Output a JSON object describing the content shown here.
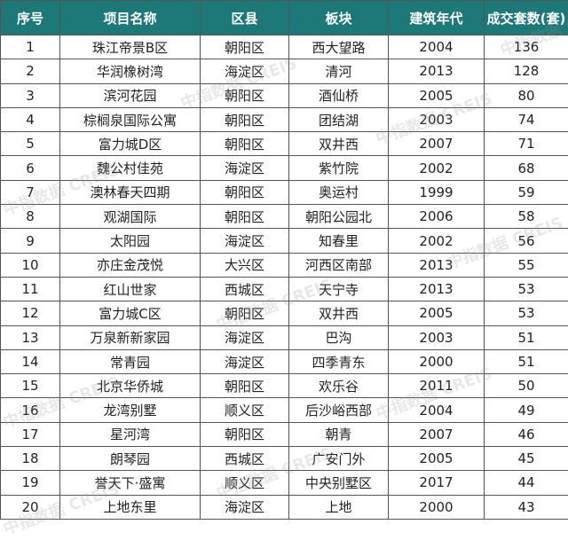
{
  "headers": [
    "序号",
    "项目名称",
    "区县",
    "板块",
    "建筑年代",
    "成交套数(套)"
  ],
  "rows": [
    [
      "1",
      "珠江帝景B区",
      "朝阳区",
      "西大望路",
      "2004",
      "136"
    ],
    [
      "2",
      "华润橡树湾",
      "海淀区",
      "清河",
      "2013",
      "128"
    ],
    [
      "3",
      "滨河花园",
      "朝阳区",
      "酒仙桥",
      "2005",
      "80"
    ],
    [
      "4",
      "棕榈泉国际公寓",
      "朝阳区",
      "团结湖",
      "2003",
      "74"
    ],
    [
      "5",
      "富力城D区",
      "朝阳区",
      "双井西",
      "2007",
      "71"
    ],
    [
      "6",
      "魏公村佳苑",
      "海淀区",
      "紫竹院",
      "2002",
      "68"
    ],
    [
      "7",
      "澳林春天四期",
      "朝阳区",
      "奥运村",
      "1999",
      "59"
    ],
    [
      "8",
      "观湖国际",
      "朝阳区",
      "朝阳公园北",
      "2006",
      "58"
    ],
    [
      "9",
      "太阳园",
      "海淀区",
      "知春里",
      "2002",
      "56"
    ],
    [
      "10",
      "亦庄金茂悦",
      "大兴区",
      "河西区南部",
      "2013",
      "55"
    ],
    [
      "11",
      "红山世家",
      "西城区",
      "天宁寺",
      "2013",
      "53"
    ],
    [
      "12",
      "富力城C区",
      "朝阳区",
      "双井西",
      "2005",
      "53"
    ],
    [
      "13",
      "万泉新新家园",
      "海淀区",
      "巴沟",
      "2003",
      "51"
    ],
    [
      "14",
      "常青园",
      "海淀区",
      "四季青东",
      "2000",
      "51"
    ],
    [
      "15",
      "北京华侨城",
      "朝阳区",
      "欢乐谷",
      "2011",
      "50"
    ],
    [
      "16",
      "龙湾别墅",
      "顺义区",
      "后沙峪西部",
      "2004",
      "49"
    ],
    [
      "17",
      "星河湾",
      "朝阳区",
      "朝青",
      "2007",
      "46"
    ],
    [
      "18",
      "朗琴园",
      "西城区",
      "广安门外",
      "2005",
      "45"
    ],
    [
      "19",
      "誉天下·盛寓",
      "顺义区",
      "中央别墅区",
      "2017",
      "44"
    ],
    [
      "20",
      "上地东里",
      "海淀区",
      "上地",
      "2000",
      "43"
    ]
  ],
  "watermark": "中指数据 CREIS",
  "colors": {
    "header_bg": "#1d7878",
    "header_text": "#ffffff"
  }
}
